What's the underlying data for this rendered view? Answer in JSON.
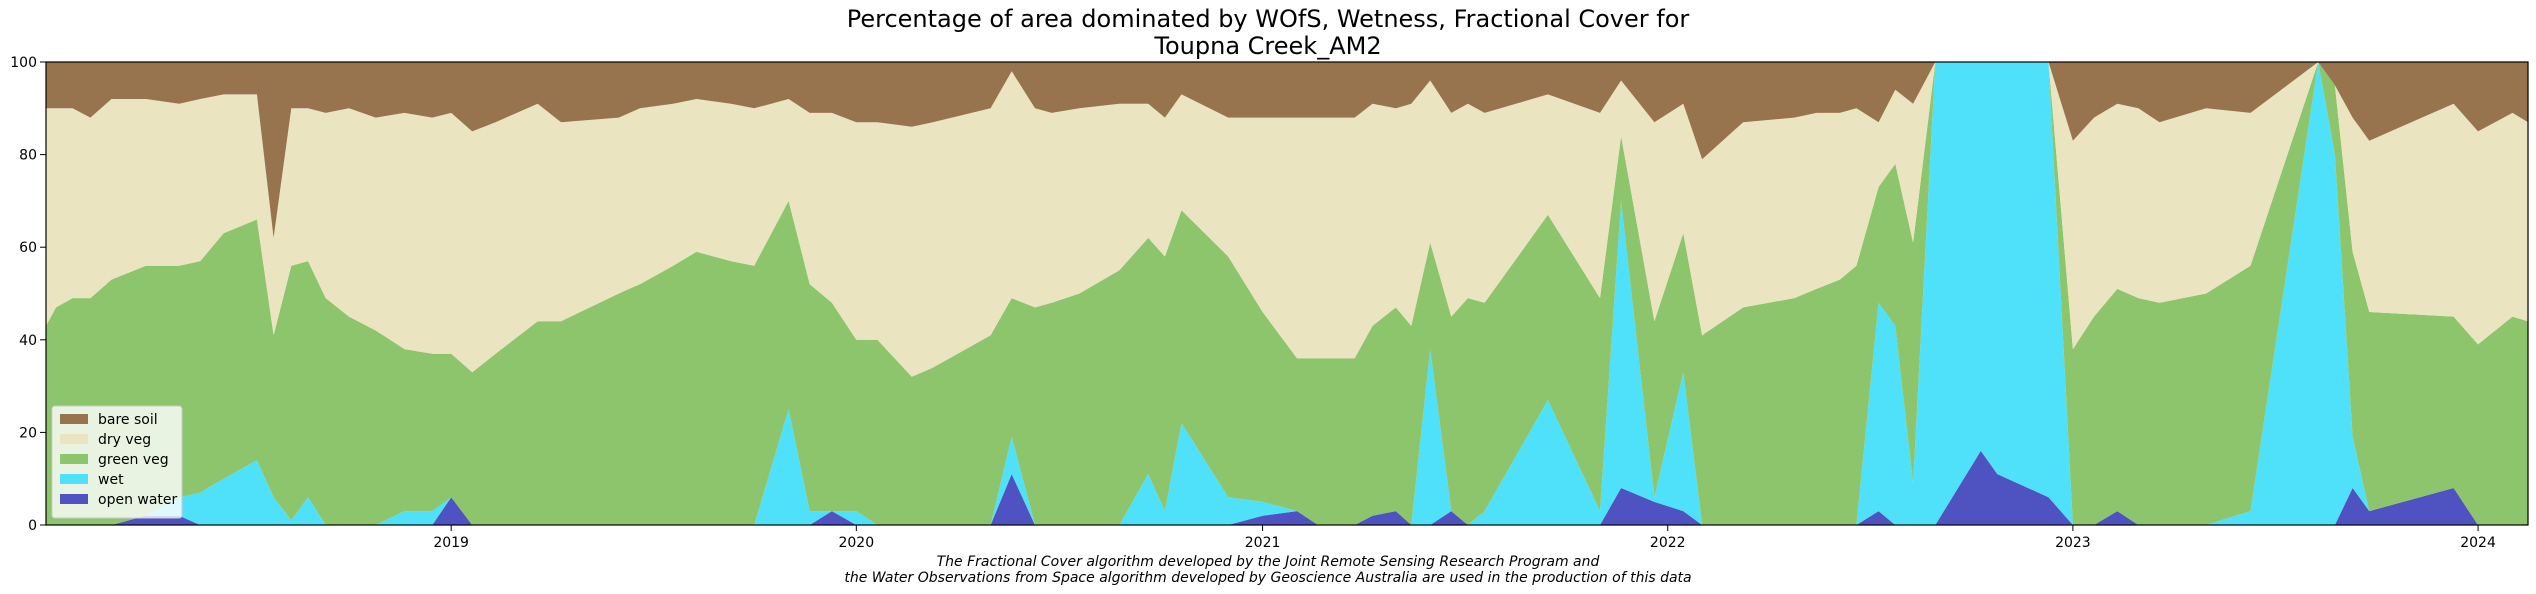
{
  "chart_data": {
    "type": "area",
    "title_line1": "Percentage of area dominated by WOfS, Wetness, Fractional Cover for",
    "title_line2": "Toupna Creek_AM2",
    "xlim": [
      "2018-01-01",
      "2024-02-15"
    ],
    "ylim": [
      0,
      100
    ],
    "x_ticks": [
      {
        "date": "2019-01-01",
        "label": "2019"
      },
      {
        "date": "2020-01-01",
        "label": "2020"
      },
      {
        "date": "2021-01-01",
        "label": "2021"
      },
      {
        "date": "2022-01-01",
        "label": "2022"
      },
      {
        "date": "2023-01-01",
        "label": "2023"
      },
      {
        "date": "2024-01-01",
        "label": "2024"
      }
    ],
    "y_ticks": [
      0,
      20,
      40,
      60,
      80,
      100
    ],
    "legend_position": "lower-left",
    "series": [
      {
        "name": "open water",
        "color": "#4f53c1"
      },
      {
        "name": "wet",
        "color": "#4fe1fa"
      },
      {
        "name": "green veg",
        "color": "#8dc56c"
      },
      {
        "name": "dry veg",
        "color": "#ebe4c0"
      },
      {
        "name": "bare soil",
        "color": "#98744e"
      }
    ],
    "points": [
      {
        "date": "2018-01-01",
        "open_water": 0,
        "wet": 0,
        "green_veg": 43,
        "dry_veg": 47,
        "bare_soil": 10
      },
      {
        "date": "2018-01-10",
        "open_water": 0,
        "wet": 0,
        "green_veg": 47,
        "dry_veg": 43,
        "bare_soil": 10
      },
      {
        "date": "2018-01-25",
        "open_water": 0,
        "wet": 0,
        "green_veg": 49,
        "dry_veg": 41,
        "bare_soil": 10
      },
      {
        "date": "2018-02-10",
        "open_water": 0,
        "wet": 0,
        "green_veg": 49,
        "dry_veg": 39,
        "bare_soil": 12
      },
      {
        "date": "2018-03-01",
        "open_water": 0,
        "wet": 0,
        "green_veg": 53,
        "dry_veg": 39,
        "bare_soil": 8
      },
      {
        "date": "2018-04-01",
        "open_water": 2,
        "wet": 0,
        "green_veg": 54,
        "dry_veg": 36,
        "bare_soil": 8
      },
      {
        "date": "2018-05-01",
        "open_water": 2,
        "wet": 4,
        "green_veg": 50,
        "dry_veg": 35,
        "bare_soil": 9
      },
      {
        "date": "2018-05-20",
        "open_water": 0,
        "wet": 7,
        "green_veg": 50,
        "dry_veg": 35,
        "bare_soil": 8
      },
      {
        "date": "2018-06-10",
        "open_water": 0,
        "wet": 10,
        "green_veg": 53,
        "dry_veg": 30,
        "bare_soil": 7
      },
      {
        "date": "2018-07-10",
        "open_water": 0,
        "wet": 14,
        "green_veg": 52,
        "dry_veg": 27,
        "bare_soil": 7
      },
      {
        "date": "2018-07-25",
        "open_water": 0,
        "wet": 6,
        "green_veg": 35,
        "dry_veg": 21,
        "bare_soil": 38
      },
      {
        "date": "2018-08-10",
        "open_water": 0,
        "wet": 1,
        "green_veg": 55,
        "dry_veg": 34,
        "bare_soil": 10
      },
      {
        "date": "2018-08-25",
        "open_water": 0,
        "wet": 6,
        "green_veg": 51,
        "dry_veg": 33,
        "bare_soil": 10
      },
      {
        "date": "2018-09-10",
        "open_water": 0,
        "wet": 0,
        "green_veg": 49,
        "dry_veg": 40,
        "bare_soil": 11
      },
      {
        "date": "2018-10-01",
        "open_water": 0,
        "wet": 0,
        "green_veg": 45,
        "dry_veg": 45,
        "bare_soil": 10
      },
      {
        "date": "2018-10-25",
        "open_water": 0,
        "wet": 0,
        "green_veg": 42,
        "dry_veg": 46,
        "bare_soil": 12
      },
      {
        "date": "2018-11-20",
        "open_water": 0,
        "wet": 3,
        "green_veg": 35,
        "dry_veg": 51,
        "bare_soil": 11
      },
      {
        "date": "2018-12-15",
        "open_water": 0,
        "wet": 3,
        "green_veg": 34,
        "dry_veg": 51,
        "bare_soil": 12
      },
      {
        "date": "2019-01-01",
        "open_water": 6,
        "wet": 0,
        "green_veg": 31,
        "dry_veg": 52,
        "bare_soil": 11
      },
      {
        "date": "2019-01-20",
        "open_water": 0,
        "wet": 0,
        "green_veg": 33,
        "dry_veg": 52,
        "bare_soil": 15
      },
      {
        "date": "2019-02-10",
        "open_water": 0,
        "wet": 0,
        "green_veg": 37,
        "dry_veg": 50,
        "bare_soil": 13
      },
      {
        "date": "2019-03-20",
        "open_water": 0,
        "wet": 0,
        "green_veg": 44,
        "dry_veg": 47,
        "bare_soil": 9
      },
      {
        "date": "2019-04-10",
        "open_water": 0,
        "wet": 0,
        "green_veg": 44,
        "dry_veg": 43,
        "bare_soil": 13
      },
      {
        "date": "2019-06-01",
        "open_water": 0,
        "wet": 0,
        "green_veg": 50,
        "dry_veg": 38,
        "bare_soil": 12
      },
      {
        "date": "2019-06-20",
        "open_water": 0,
        "wet": 0,
        "green_veg": 52,
        "dry_veg": 38,
        "bare_soil": 10
      },
      {
        "date": "2019-07-20",
        "open_water": 0,
        "wet": 0,
        "green_veg": 56,
        "dry_veg": 35,
        "bare_soil": 9
      },
      {
        "date": "2019-08-10",
        "open_water": 0,
        "wet": 0,
        "green_veg": 59,
        "dry_veg": 33,
        "bare_soil": 8
      },
      {
        "date": "2019-09-10",
        "open_water": 0,
        "wet": 0,
        "green_veg": 57,
        "dry_veg": 34,
        "bare_soil": 9
      },
      {
        "date": "2019-10-01",
        "open_water": 0,
        "wet": 0,
        "green_veg": 56,
        "dry_veg": 34,
        "bare_soil": 10
      },
      {
        "date": "2019-11-01",
        "open_water": 0,
        "wet": 25,
        "green_veg": 45,
        "dry_veg": 22,
        "bare_soil": 8
      },
      {
        "date": "2019-11-20",
        "open_water": 0,
        "wet": 3,
        "green_veg": 49,
        "dry_veg": 37,
        "bare_soil": 11
      },
      {
        "date": "2019-12-10",
        "open_water": 3,
        "wet": 0,
        "green_veg": 45,
        "dry_veg": 41,
        "bare_soil": 11
      },
      {
        "date": "2020-01-01",
        "open_water": 0,
        "wet": 3,
        "green_veg": 37,
        "dry_veg": 47,
        "bare_soil": 13
      },
      {
        "date": "2020-01-20",
        "open_water": 0,
        "wet": 0,
        "green_veg": 40,
        "dry_veg": 47,
        "bare_soil": 13
      },
      {
        "date": "2020-02-20",
        "open_water": 0,
        "wet": 0,
        "green_veg": 32,
        "dry_veg": 54,
        "bare_soil": 14
      },
      {
        "date": "2020-03-10",
        "open_water": 0,
        "wet": 0,
        "green_veg": 34,
        "dry_veg": 53,
        "bare_soil": 13
      },
      {
        "date": "2020-05-01",
        "open_water": 0,
        "wet": 0,
        "green_veg": 41,
        "dry_veg": 49,
        "bare_soil": 10
      },
      {
        "date": "2020-05-20",
        "open_water": 11,
        "wet": 8,
        "green_veg": 30,
        "dry_veg": 49,
        "bare_soil": 2
      },
      {
        "date": "2020-06-10",
        "open_water": 0,
        "wet": 0,
        "green_veg": 47,
        "dry_veg": 43,
        "bare_soil": 10
      },
      {
        "date": "2020-06-25",
        "open_water": 0,
        "wet": 0,
        "green_veg": 48,
        "dry_veg": 41,
        "bare_soil": 11
      },
      {
        "date": "2020-07-20",
        "open_water": 0,
        "wet": 0,
        "green_veg": 50,
        "dry_veg": 40,
        "bare_soil": 10
      },
      {
        "date": "2020-08-25",
        "open_water": 0,
        "wet": 0,
        "green_veg": 55,
        "dry_veg": 36,
        "bare_soil": 9
      },
      {
        "date": "2020-09-20",
        "open_water": 0,
        "wet": 11,
        "green_veg": 51,
        "dry_veg": 29,
        "bare_soil": 9
      },
      {
        "date": "2020-10-05",
        "open_water": 0,
        "wet": 3,
        "green_veg": 55,
        "dry_veg": 30,
        "bare_soil": 12
      },
      {
        "date": "2020-10-20",
        "open_water": 0,
        "wet": 22,
        "green_veg": 46,
        "dry_veg": 25,
        "bare_soil": 7
      },
      {
        "date": "2020-12-01",
        "open_water": 0,
        "wet": 6,
        "green_veg": 52,
        "dry_veg": 30,
        "bare_soil": 12
      },
      {
        "date": "2021-01-01",
        "open_water": 2,
        "wet": 3,
        "green_veg": 41,
        "dry_veg": 42,
        "bare_soil": 12
      },
      {
        "date": "2021-02-01",
        "open_water": 3,
        "wet": 0,
        "green_veg": 33,
        "dry_veg": 52,
        "bare_soil": 12
      },
      {
        "date": "2021-02-20",
        "open_water": 0,
        "wet": 0,
        "green_veg": 36,
        "dry_veg": 52,
        "bare_soil": 12
      },
      {
        "date": "2021-03-25",
        "open_water": 0,
        "wet": 0,
        "green_veg": 36,
        "dry_veg": 52,
        "bare_soil": 12
      },
      {
        "date": "2021-04-10",
        "open_water": 2,
        "wet": 0,
        "green_veg": 41,
        "dry_veg": 48,
        "bare_soil": 9
      },
      {
        "date": "2021-05-01",
        "open_water": 3,
        "wet": 0,
        "green_veg": 44,
        "dry_veg": 43,
        "bare_soil": 10
      },
      {
        "date": "2021-05-15",
        "open_water": 0,
        "wet": 0,
        "green_veg": 43,
        "dry_veg": 48,
        "bare_soil": 9
      },
      {
        "date": "2021-06-01",
        "open_water": 0,
        "wet": 38,
        "green_veg": 23,
        "dry_veg": 35,
        "bare_soil": 4
      },
      {
        "date": "2021-06-20",
        "open_water": 3,
        "wet": 0,
        "green_veg": 42,
        "dry_veg": 44,
        "bare_soil": 11
      },
      {
        "date": "2021-07-05",
        "open_water": 0,
        "wet": 0,
        "green_veg": 49,
        "dry_veg": 42,
        "bare_soil": 9
      },
      {
        "date": "2021-07-20",
        "open_water": 0,
        "wet": 3,
        "green_veg": 45,
        "dry_veg": 41,
        "bare_soil": 11
      },
      {
        "date": "2021-09-15",
        "open_water": 0,
        "wet": 27,
        "green_veg": 40,
        "dry_veg": 26,
        "bare_soil": 7
      },
      {
        "date": "2021-11-01",
        "open_water": 0,
        "wet": 3,
        "green_veg": 46,
        "dry_veg": 40,
        "bare_soil": 11
      },
      {
        "date": "2021-11-20",
        "open_water": 8,
        "wet": 62,
        "green_veg": 14,
        "dry_veg": 12,
        "bare_soil": 4
      },
      {
        "date": "2021-12-20",
        "open_water": 5,
        "wet": 1,
        "green_veg": 38,
        "dry_veg": 43,
        "bare_soil": 13
      },
      {
        "date": "2022-01-15",
        "open_water": 3,
        "wet": 30,
        "green_veg": 30,
        "dry_veg": 28,
        "bare_soil": 9
      },
      {
        "date": "2022-02-01",
        "open_water": 0,
        "wet": 0,
        "green_veg": 41,
        "dry_veg": 38,
        "bare_soil": 21
      },
      {
        "date": "2022-03-10",
        "open_water": 0,
        "wet": 0,
        "green_veg": 47,
        "dry_veg": 40,
        "bare_soil": 13
      },
      {
        "date": "2022-04-25",
        "open_water": 0,
        "wet": 0,
        "green_veg": 49,
        "dry_veg": 39,
        "bare_soil": 12
      },
      {
        "date": "2022-05-15",
        "open_water": 0,
        "wet": 0,
        "green_veg": 51,
        "dry_veg": 38,
        "bare_soil": 11
      },
      {
        "date": "2022-06-05",
        "open_water": 0,
        "wet": 0,
        "green_veg": 53,
        "dry_veg": 36,
        "bare_soil": 11
      },
      {
        "date": "2022-06-20",
        "open_water": 0,
        "wet": 0,
        "green_veg": 56,
        "dry_veg": 34,
        "bare_soil": 10
      },
      {
        "date": "2022-07-10",
        "open_water": 3,
        "wet": 45,
        "green_veg": 25,
        "dry_veg": 14,
        "bare_soil": 13
      },
      {
        "date": "2022-07-25",
        "open_water": 0,
        "wet": 43,
        "green_veg": 35,
        "dry_veg": 16,
        "bare_soil": 6
      },
      {
        "date": "2022-08-10",
        "open_water": 0,
        "wet": 9,
        "green_veg": 52,
        "dry_veg": 30,
        "bare_soil": 9
      },
      {
        "date": "2022-08-30",
        "open_water": 0,
        "wet": 100,
        "green_veg": 0,
        "dry_veg": 0,
        "bare_soil": 0
      },
      {
        "date": "2022-10-10",
        "open_water": 16,
        "wet": 84,
        "green_veg": 0,
        "dry_veg": 0,
        "bare_soil": 0
      },
      {
        "date": "2022-10-25",
        "open_water": 11,
        "wet": 89,
        "green_veg": 0,
        "dry_veg": 0,
        "bare_soil": 0
      },
      {
        "date": "2022-12-10",
        "open_water": 6,
        "wet": 94,
        "green_veg": 0,
        "dry_veg": 0,
        "bare_soil": 0
      },
      {
        "date": "2023-01-01",
        "open_water": 0,
        "wet": 0,
        "green_veg": 38,
        "dry_veg": 45,
        "bare_soil": 17
      },
      {
        "date": "2023-01-20",
        "open_water": 0,
        "wet": 0,
        "green_veg": 45,
        "dry_veg": 43,
        "bare_soil": 12
      },
      {
        "date": "2023-02-10",
        "open_water": 3,
        "wet": 0,
        "green_veg": 48,
        "dry_veg": 40,
        "bare_soil": 9
      },
      {
        "date": "2023-03-01",
        "open_water": 0,
        "wet": 0,
        "green_veg": 49,
        "dry_veg": 41,
        "bare_soil": 10
      },
      {
        "date": "2023-03-20",
        "open_water": 0,
        "wet": 0,
        "green_veg": 48,
        "dry_veg": 39,
        "bare_soil": 13
      },
      {
        "date": "2023-05-01",
        "open_water": 0,
        "wet": 0,
        "green_veg": 50,
        "dry_veg": 40,
        "bare_soil": 10
      },
      {
        "date": "2023-06-10",
        "open_water": 0,
        "wet": 3,
        "green_veg": 53,
        "dry_veg": 33,
        "bare_soil": 11
      },
      {
        "date": "2023-08-10",
        "open_water": 0,
        "wet": 100,
        "green_veg": 0,
        "dry_veg": 0,
        "bare_soil": 0
      },
      {
        "date": "2023-08-25",
        "open_water": 0,
        "wet": 80,
        "green_veg": 15,
        "dry_veg": 0,
        "bare_soil": 5
      },
      {
        "date": "2023-09-10",
        "open_water": 8,
        "wet": 11,
        "green_veg": 40,
        "dry_veg": 29,
        "bare_soil": 12
      },
      {
        "date": "2023-09-25",
        "open_water": 3,
        "wet": 0,
        "green_veg": 43,
        "dry_veg": 37,
        "bare_soil": 17
      },
      {
        "date": "2023-12-10",
        "open_water": 8,
        "wet": 0,
        "green_veg": 37,
        "dry_veg": 46,
        "bare_soil": 9
      },
      {
        "date": "2024-01-01",
        "open_water": 0,
        "wet": 0,
        "green_veg": 39,
        "dry_veg": 46,
        "bare_soil": 15
      },
      {
        "date": "2024-02-01",
        "open_water": 0,
        "wet": 0,
        "green_veg": 45,
        "dry_veg": 44,
        "bare_soil": 11
      },
      {
        "date": "2024-02-15",
        "open_water": 0,
        "wet": 0,
        "green_veg": 44,
        "dry_veg": 43,
        "bare_soil": 13
      }
    ]
  },
  "caption_line1": "The Fractional Cover algorithm developed by the Joint Remote Sensing Research Program and",
  "caption_line2": "the Water Observations from Space algorithm developed by Geoscience Australia are used in the production of this data"
}
